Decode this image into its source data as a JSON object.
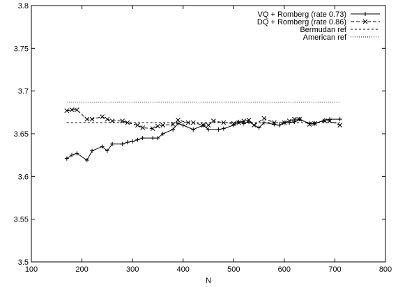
{
  "chart_data": {
    "type": "line",
    "title": "",
    "xlabel": "N",
    "ylabel": "",
    "xlim": [
      100,
      800
    ],
    "ylim": [
      3.5,
      3.8
    ],
    "xticks": [
      "100",
      "200",
      "300",
      "400",
      "500",
      "600",
      "700",
      "800"
    ],
    "yticks": [
      "3.5",
      "3.55",
      "3.6",
      "3.65",
      "3.7",
      "3.75",
      "3.8"
    ],
    "grid": false,
    "legend_position": "top-right",
    "series": [
      {
        "name": "VQ + Romberg (rate 0.73)",
        "line_style": "solid",
        "marker": "plus",
        "color": "#000000",
        "x": [
          170,
          180,
          190,
          210,
          220,
          240,
          250,
          260,
          280,
          290,
          300,
          310,
          320,
          340,
          350,
          360,
          380,
          390,
          400,
          420,
          440,
          450,
          470,
          480,
          500,
          510,
          520,
          530,
          550,
          560,
          580,
          590,
          600,
          610,
          620,
          630,
          650,
          660,
          680,
          690,
          710
        ],
        "y": [
          3.621,
          3.625,
          3.627,
          3.619,
          3.63,
          3.635,
          3.63,
          3.638,
          3.638,
          3.64,
          3.641,
          3.643,
          3.645,
          3.645,
          3.645,
          3.65,
          3.655,
          3.662,
          3.66,
          3.655,
          3.66,
          3.655,
          3.655,
          3.656,
          3.66,
          3.664,
          3.662,
          3.664,
          3.657,
          3.663,
          3.661,
          3.66,
          3.663,
          3.663,
          3.664,
          3.667,
          3.662,
          3.662,
          3.666,
          3.667,
          3.667
        ]
      },
      {
        "name": "DQ + Romberg (rate 0.86)",
        "line_style": "dashed",
        "marker": "cross",
        "color": "#000000",
        "x": [
          170,
          180,
          190,
          210,
          220,
          240,
          250,
          260,
          280,
          290,
          310,
          320,
          340,
          350,
          360,
          380,
          390,
          410,
          420,
          440,
          450,
          460,
          480,
          500,
          510,
          520,
          530,
          540,
          560,
          580,
          600,
          610,
          620,
          630,
          650,
          660,
          680,
          690,
          710
        ],
        "y": [
          3.677,
          3.678,
          3.678,
          3.667,
          3.667,
          3.67,
          3.667,
          3.665,
          3.665,
          3.663,
          3.66,
          3.657,
          3.656,
          3.659,
          3.66,
          3.661,
          3.666,
          3.663,
          3.663,
          3.66,
          3.66,
          3.665,
          3.663,
          3.662,
          3.663,
          3.665,
          3.666,
          3.66,
          3.668,
          3.663,
          3.663,
          3.665,
          3.667,
          3.667,
          3.661,
          3.662,
          3.665,
          3.665,
          3.66
        ]
      },
      {
        "name": "Bermudan ref",
        "line_style": "dashed-fine",
        "marker": "none",
        "color": "#000000",
        "x": [
          170,
          710
        ],
        "y": [
          3.663,
          3.663
        ]
      },
      {
        "name": "American ref",
        "line_style": "dotted",
        "marker": "none",
        "color": "#000000",
        "x": [
          170,
          710
        ],
        "y": [
          3.687,
          3.687
        ]
      }
    ]
  }
}
